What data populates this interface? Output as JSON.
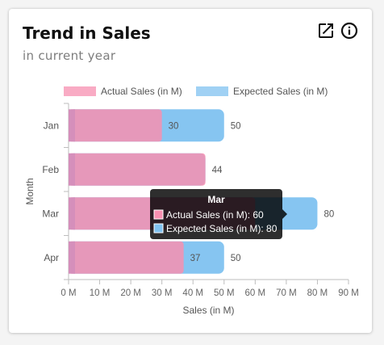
{
  "card": {
    "title": "Trend in Sales",
    "subtitle": "in current year",
    "icons": [
      "open-in-new-icon",
      "info-icon"
    ]
  },
  "chart_data": {
    "type": "bar",
    "orientation": "horizontal",
    "categories": [
      "Jan",
      "Feb",
      "Mar",
      "Apr"
    ],
    "series": [
      {
        "name": "Actual Sales (in M)",
        "values": [
          30,
          44,
          60,
          37
        ],
        "color": "#f78fb0"
      },
      {
        "name": "Expected Sales (in M)",
        "values": [
          50,
          44,
          80,
          50
        ],
        "color": "#80c2f0"
      }
    ],
    "xlabel": "Sales (in M)",
    "ylabel": "Month",
    "xlim": [
      0,
      90
    ],
    "xticks": [
      0,
      10,
      20,
      30,
      40,
      50,
      60,
      70,
      80,
      90
    ],
    "tick_suffix": " M",
    "grid": false,
    "legend_position": "top",
    "data_labels": {
      "Jan": [
        "30",
        "50"
      ],
      "Feb": [
        "",
        "44"
      ],
      "Mar": [
        "",
        "80"
      ],
      "Apr": [
        "37",
        "50"
      ]
    },
    "tooltip": {
      "title": "Mar",
      "lines": [
        "Actual Sales (in M): 60",
        "Expected Sales (in M): 80"
      ]
    }
  }
}
